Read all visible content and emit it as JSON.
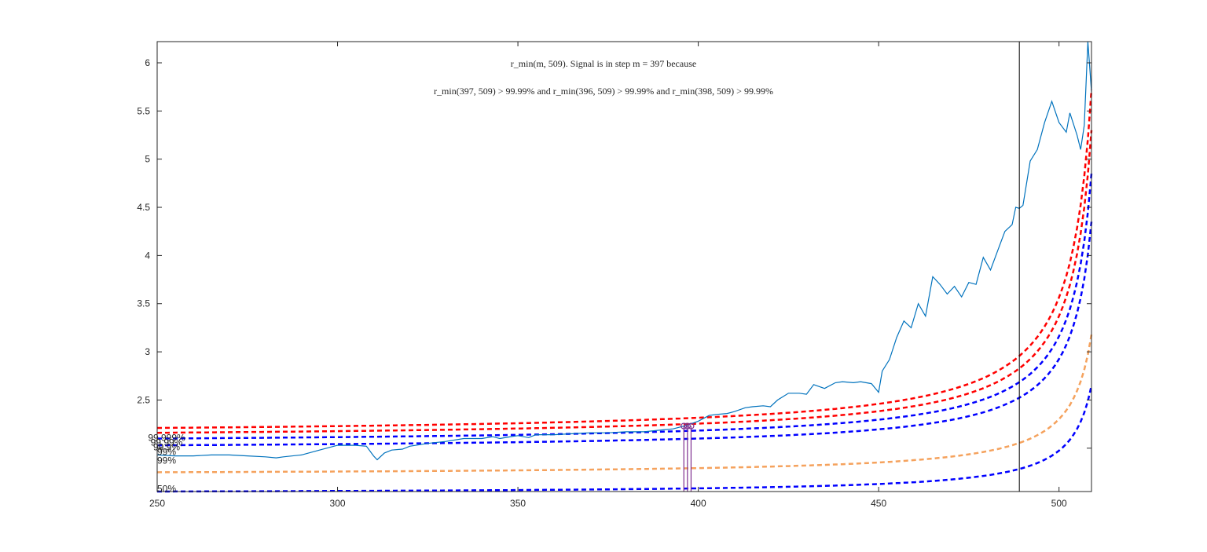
{
  "chart_data": {
    "type": "line",
    "title_lines": [
      "r_min(m, 509). Signal is in step m = 397 because",
      "r_min(397, 509) > 99.99% and r_min(396, 509) > 99.99% and r_min(398, 509) > 99.99%"
    ],
    "xlim": [
      250,
      509
    ],
    "ylim": [
      1.55,
      6.22
    ],
    "xticks": [
      250,
      300,
      350,
      400,
      450,
      500
    ],
    "yticks": [
      2,
      2.5,
      3,
      3.5,
      4,
      4.5,
      5,
      5.5,
      6
    ],
    "ytick_labels": [
      "",
      "2.5",
      "3",
      "3.5",
      "4",
      "4.5",
      "5",
      "5.5",
      "6"
    ],
    "signal": {
      "x": [
        250,
        255,
        260,
        265,
        270,
        275,
        280,
        283,
        285,
        290,
        295,
        300,
        305,
        308,
        310,
        311,
        313,
        315,
        318,
        320,
        325,
        330,
        335,
        340,
        343,
        345,
        348,
        350,
        353,
        355,
        360,
        365,
        370,
        375,
        380,
        385,
        390,
        393,
        395,
        397,
        400,
        403,
        405,
        408,
        410,
        413,
        415,
        418,
        420,
        422,
        425,
        428,
        430,
        432,
        435,
        438,
        440,
        443,
        445,
        448,
        450,
        451,
        453,
        455,
        457,
        459,
        461,
        463,
        465,
        467,
        469,
        471,
        473,
        475,
        477,
        479,
        481,
        483,
        485,
        487,
        488,
        489,
        490,
        492,
        494,
        496,
        498,
        500,
        502,
        503,
        505,
        506,
        507,
        508,
        509
      ],
      "y": [
        1.93,
        1.92,
        1.92,
        1.93,
        1.93,
        1.92,
        1.91,
        1.9,
        1.91,
        1.93,
        1.98,
        2.03,
        2.03,
        2.02,
        1.92,
        1.88,
        1.95,
        1.98,
        1.99,
        2.02,
        2.05,
        2.07,
        2.1,
        2.1,
        2.12,
        2.1,
        2.12,
        2.13,
        2.11,
        2.14,
        2.14,
        2.15,
        2.16,
        2.16,
        2.17,
        2.17,
        2.19,
        2.2,
        2.22,
        2.24,
        2.28,
        2.34,
        2.35,
        2.36,
        2.38,
        2.42,
        2.43,
        2.44,
        2.43,
        2.5,
        2.57,
        2.57,
        2.56,
        2.66,
        2.62,
        2.68,
        2.69,
        2.68,
        2.69,
        2.67,
        2.58,
        2.8,
        2.92,
        3.15,
        3.32,
        3.25,
        3.5,
        3.37,
        3.78,
        3.7,
        3.6,
        3.68,
        3.57,
        3.72,
        3.7,
        3.98,
        3.85,
        4.05,
        4.25,
        4.32,
        4.5,
        4.49,
        4.52,
        4.98,
        5.1,
        5.38,
        5.6,
        5.38,
        5.28,
        5.48,
        5.25,
        5.1,
        5.35,
        6.22,
        5.7
      ]
    },
    "thresholds": [
      {
        "name": "99.999%",
        "color": "#ff0000",
        "y_start": 2.21,
        "y_end": 5.72
      },
      {
        "name": "99.99%",
        "color": "#ff0000",
        "y_start": 2.16,
        "y_end": 5.3
      },
      {
        "name": "99.9%",
        "color": "#0000ff",
        "y_start": 2.1,
        "y_end": 4.85
      },
      {
        "name": "99%",
        "color": "#0000ff",
        "y_start": 2.03,
        "y_end": 4.35
      },
      {
        "name": "99%",
        "color": "#f5a25d",
        "y_start": 1.75,
        "y_end": 3.18
      },
      {
        "name": "50%",
        "color": "#0000ff",
        "y_start": 1.55,
        "y_end": 2.65
      }
    ],
    "level_labels": [
      {
        "text": "99.999%",
        "y": 2.11
      },
      {
        "text": "99.99%",
        "y": 2.06
      },
      {
        "text": "99.9%",
        "y": 2.01
      },
      {
        "text": "99%",
        "y": 1.96
      },
      {
        "text": "99%",
        "y": 1.87
      },
      {
        "text": "50%",
        "y": 1.58
      }
    ],
    "marked_steps": [
      396,
      397,
      398
    ],
    "marker_y": 2.23,
    "vertical_line_x": 489,
    "colors": {
      "signal": "#0072bd",
      "markers": "#7e2f8e",
      "axis": "#262626"
    },
    "grid": false,
    "legend": "none"
  }
}
